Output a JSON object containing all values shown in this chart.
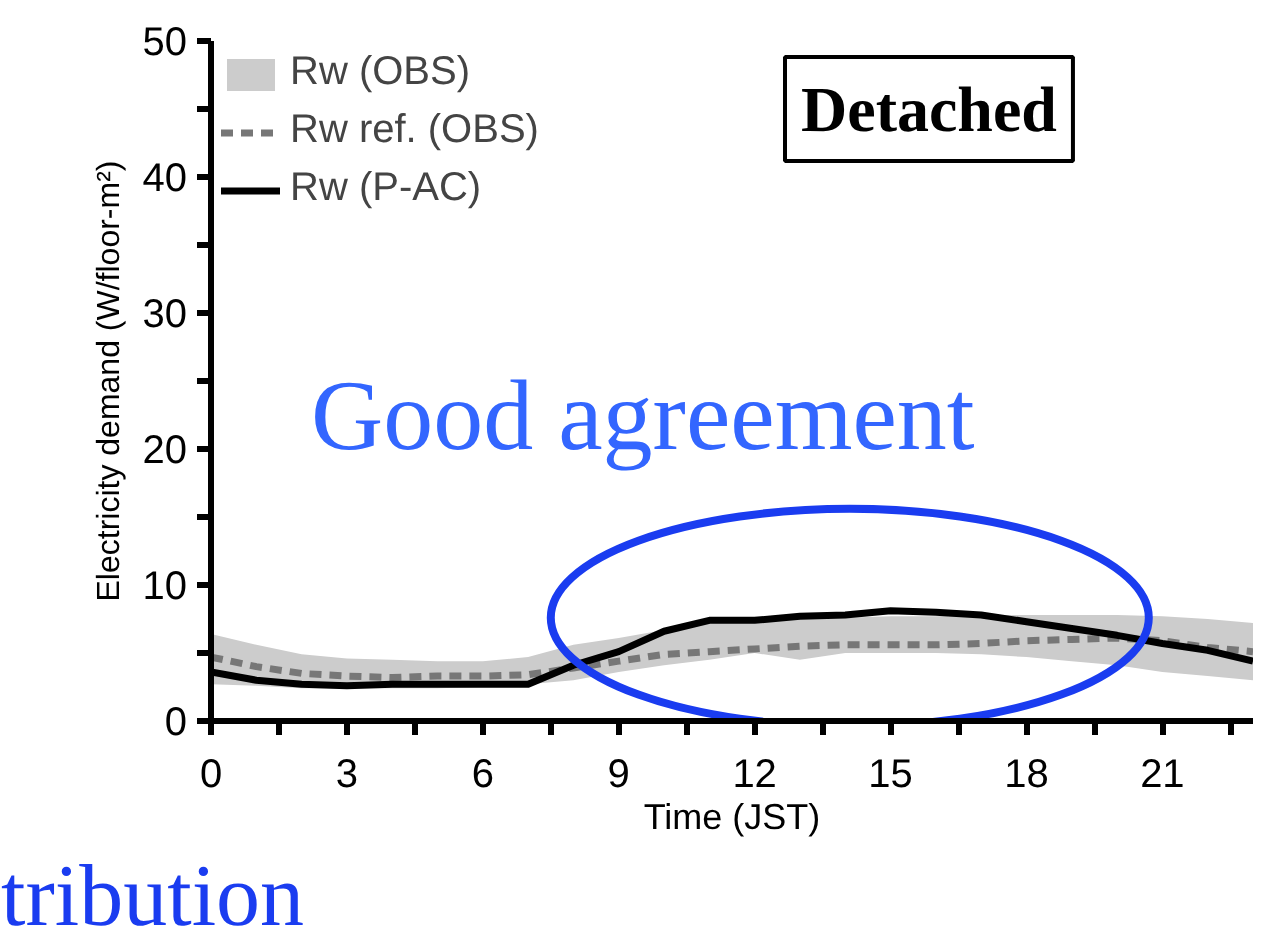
{
  "chart_data": {
    "type": "line",
    "xlabel": "Time (JST)",
    "ylabel": "Electricity demand (W/floor-m²)",
    "x": [
      0,
      1,
      2,
      3,
      4,
      5,
      6,
      7,
      8,
      9,
      10,
      11,
      12,
      13,
      14,
      15,
      16,
      17,
      18,
      19,
      20,
      21,
      22,
      23
    ],
    "series": [
      {
        "name": "Rw (OBS)",
        "type": "area",
        "color": "#cccccc",
        "values": [
          null,
          null,
          null,
          null,
          null,
          null,
          null,
          null,
          null,
          null,
          null,
          null,
          null,
          null,
          null,
          null,
          null,
          null,
          null,
          null,
          null,
          null,
          null,
          null
        ],
        "lower": [
          2.7,
          2.6,
          2.4,
          2.4,
          2.4,
          2.4,
          2.5,
          2.7,
          3.0,
          3.6,
          4.1,
          4.5,
          5.0,
          4.5,
          5.0,
          5.0,
          5.0,
          4.9,
          4.7,
          4.4,
          4.1,
          3.6,
          3.3,
          3.0
        ],
        "upper": [
          6.4,
          5.6,
          4.9,
          4.6,
          4.5,
          4.4,
          4.4,
          4.7,
          5.6,
          6.1,
          6.7,
          7.2,
          7.4,
          7.6,
          7.6,
          7.7,
          7.7,
          7.8,
          7.8,
          7.8,
          7.8,
          7.7,
          7.5,
          7.2
        ]
      },
      {
        "name": "Rw ref. (OBS)",
        "type": "line",
        "line_style": "dashed",
        "color": "#777777",
        "values": [
          4.7,
          4.0,
          3.5,
          3.3,
          3.2,
          3.3,
          3.3,
          3.4,
          3.9,
          4.4,
          4.9,
          5.1,
          5.3,
          5.5,
          5.6,
          5.6,
          5.6,
          5.7,
          5.9,
          6.0,
          6.1,
          5.9,
          5.4,
          5.1
        ]
      },
      {
        "name": "Rw (P-AC)",
        "type": "line",
        "line_style": "solid",
        "color": "#000000",
        "values": [
          3.6,
          3.0,
          2.7,
          2.6,
          2.7,
          2.7,
          2.7,
          2.7,
          4.1,
          5.1,
          6.6,
          7.4,
          7.4,
          7.7,
          7.8,
          8.1,
          8.0,
          7.8,
          7.3,
          6.8,
          6.3,
          5.7,
          5.2,
          4.4
        ]
      }
    ],
    "xlim": [
      0,
      23
    ],
    "xticks": [
      0,
      {
        "value": 1.5,
        "label": null
      },
      3,
      {
        "value": 4.5,
        "label": null
      },
      6,
      {
        "value": 7.5,
        "label": null
      },
      9,
      {
        "value": 10.5,
        "label": null
      },
      12,
      {
        "value": 13.5,
        "label": null
      },
      15,
      {
        "value": 16.5,
        "label": null
      },
      18,
      {
        "value": 19.5,
        "label": null
      },
      21,
      {
        "value": 22.5,
        "label": null
      }
    ],
    "ylim": [
      0,
      50
    ],
    "yticks": [
      0,
      {
        "value": 5,
        "label": null
      },
      10,
      {
        "value": 15,
        "label": null
      },
      20,
      {
        "value": 25,
        "label": null
      },
      30,
      {
        "value": 35,
        "label": null
      },
      40,
      {
        "value": 45,
        "label": null
      },
      50
    ],
    "grid": false,
    "legend": "top left",
    "annotations": [
      "Detached",
      "Good agreement",
      "tribution"
    ]
  }
}
